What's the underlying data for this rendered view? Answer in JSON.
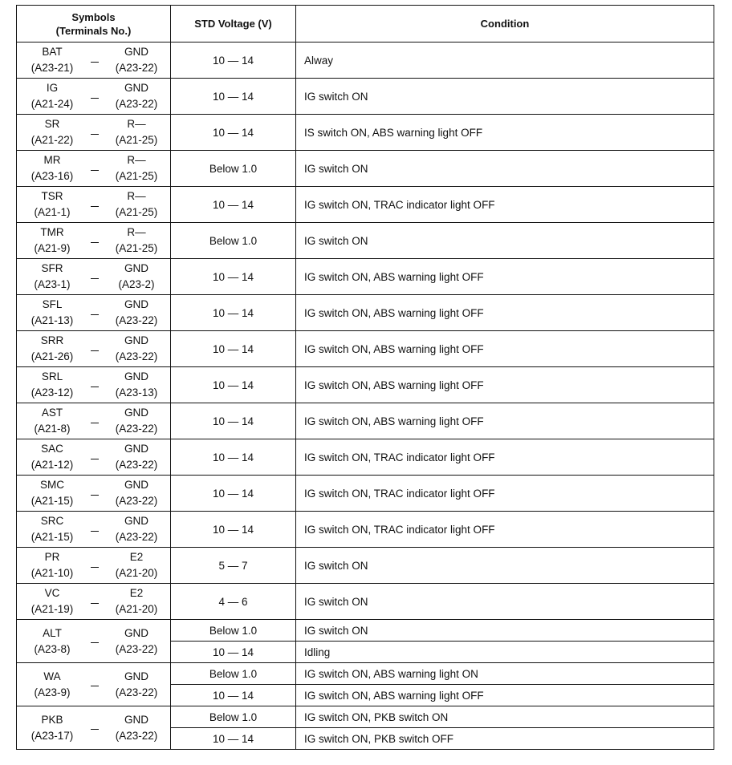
{
  "header": {
    "symbols": "Symbols",
    "terminals": "(Terminals No.)",
    "voltage": "STD Voltage (V)",
    "condition": "Condition"
  },
  "rows": [
    {
      "from": {
        "sym": "BAT",
        "term": "(A23-21)"
      },
      "to": {
        "sym": "GND",
        "term": "(A23-22)"
      },
      "readings": [
        {
          "voltage": "10 — 14",
          "condition": "Alway"
        }
      ]
    },
    {
      "from": {
        "sym": "IG",
        "term": "(A21-24)"
      },
      "to": {
        "sym": "GND",
        "term": "(A23-22)"
      },
      "readings": [
        {
          "voltage": "10 — 14",
          "condition": "IG switch ON"
        }
      ]
    },
    {
      "from": {
        "sym": "SR",
        "term": "(A21-22)"
      },
      "to": {
        "sym": "R—",
        "term": "(A21-25)"
      },
      "readings": [
        {
          "voltage": "10 — 14",
          "condition": "IS switch ON, ABS warning light OFF"
        }
      ]
    },
    {
      "from": {
        "sym": "MR",
        "term": "(A23-16)"
      },
      "to": {
        "sym": "R—",
        "term": "(A21-25)"
      },
      "readings": [
        {
          "voltage": "Below 1.0",
          "condition": "IG switch ON"
        }
      ]
    },
    {
      "from": {
        "sym": "TSR",
        "term": "(A21-1)"
      },
      "to": {
        "sym": "R—",
        "term": "(A21-25)"
      },
      "readings": [
        {
          "voltage": "10 — 14",
          "condition": "IG switch ON, TRAC indicator light OFF"
        }
      ]
    },
    {
      "from": {
        "sym": "TMR",
        "term": "(A21-9)"
      },
      "to": {
        "sym": "R—",
        "term": "(A21-25)"
      },
      "readings": [
        {
          "voltage": "Below 1.0",
          "condition": "IG switch ON"
        }
      ]
    },
    {
      "from": {
        "sym": "SFR",
        "term": "(A23-1)"
      },
      "to": {
        "sym": "GND",
        "term": "(A23-2)"
      },
      "readings": [
        {
          "voltage": "10 — 14",
          "condition": "IG switch ON, ABS warning light OFF"
        }
      ]
    },
    {
      "from": {
        "sym": "SFL",
        "term": "(A21-13)"
      },
      "to": {
        "sym": "GND",
        "term": "(A23-22)"
      },
      "readings": [
        {
          "voltage": "10 — 14",
          "condition": "IG switch ON, ABS warning light OFF"
        }
      ]
    },
    {
      "from": {
        "sym": "SRR",
        "term": "(A21-26)"
      },
      "to": {
        "sym": "GND",
        "term": "(A23-22)"
      },
      "readings": [
        {
          "voltage": "10 — 14",
          "condition": "IG switch ON, ABS warning light OFF"
        }
      ]
    },
    {
      "from": {
        "sym": "SRL",
        "term": "(A23-12)"
      },
      "to": {
        "sym": "GND",
        "term": "(A23-13)"
      },
      "readings": [
        {
          "voltage": "10 — 14",
          "condition": "IG switch ON, ABS warning light OFF"
        }
      ]
    },
    {
      "from": {
        "sym": "AST",
        "term": "(A21-8)"
      },
      "to": {
        "sym": "GND",
        "term": "(A23-22)"
      },
      "readings": [
        {
          "voltage": "10 — 14",
          "condition": "IG switch ON, ABS warning light OFF"
        }
      ]
    },
    {
      "from": {
        "sym": "SAC",
        "term": "(A21-12)"
      },
      "to": {
        "sym": "GND",
        "term": "(A23-22)"
      },
      "readings": [
        {
          "voltage": "10 — 14",
          "condition": "IG switch ON, TRAC indicator light OFF"
        }
      ]
    },
    {
      "from": {
        "sym": "SMC",
        "term": "(A21-15)"
      },
      "to": {
        "sym": "GND",
        "term": "(A23-22)"
      },
      "readings": [
        {
          "voltage": "10 — 14",
          "condition": "IG switch ON, TRAC indicator light OFF"
        }
      ]
    },
    {
      "from": {
        "sym": "SRC",
        "term": "(A21-15)"
      },
      "to": {
        "sym": "GND",
        "term": "(A23-22)"
      },
      "readings": [
        {
          "voltage": "10 — 14",
          "condition": "IG switch ON, TRAC indicator light OFF"
        }
      ]
    },
    {
      "from": {
        "sym": "PR",
        "term": "(A21-10)"
      },
      "to": {
        "sym": "E2",
        "term": "(A21-20)"
      },
      "readings": [
        {
          "voltage": "5 — 7",
          "condition": "IG switch ON"
        }
      ]
    },
    {
      "from": {
        "sym": "VC",
        "term": "(A21-19)"
      },
      "to": {
        "sym": "E2",
        "term": "(A21-20)"
      },
      "readings": [
        {
          "voltage": "4 — 6",
          "condition": "IG switch ON"
        }
      ]
    },
    {
      "from": {
        "sym": "ALT",
        "term": "(A23-8)"
      },
      "to": {
        "sym": "GND",
        "term": "(A23-22)"
      },
      "readings": [
        {
          "voltage": "Below 1.0",
          "condition": "IG switch ON"
        },
        {
          "voltage": "10 — 14",
          "condition": "Idling"
        }
      ]
    },
    {
      "from": {
        "sym": "WA",
        "term": "(A23-9)"
      },
      "to": {
        "sym": "GND",
        "term": "(A23-22)"
      },
      "readings": [
        {
          "voltage": "Below 1.0",
          "condition": "IG switch ON, ABS warning light ON"
        },
        {
          "voltage": "10 — 14",
          "condition": "IG switch ON, ABS warning light OFF"
        }
      ]
    },
    {
      "from": {
        "sym": "PKB",
        "term": "(A23-17)"
      },
      "to": {
        "sym": "GND",
        "term": "(A23-22)"
      },
      "readings": [
        {
          "voltage": "Below 1.0",
          "condition": "IG switch ON, PKB switch ON"
        },
        {
          "voltage": "10 — 14",
          "condition": "IG switch ON, PKB switch OFF"
        }
      ]
    }
  ]
}
